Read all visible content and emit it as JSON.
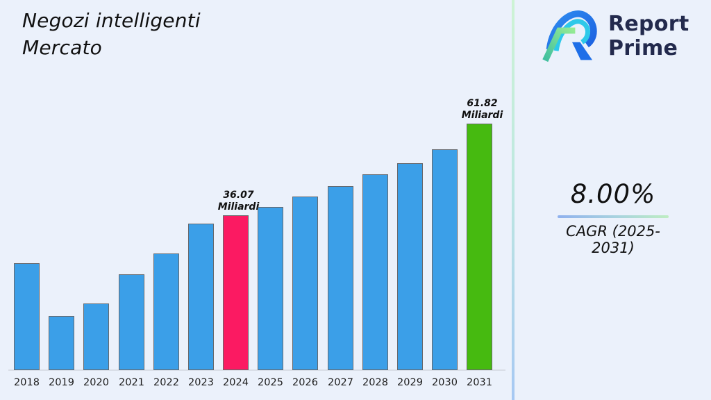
{
  "header": {
    "title_lines": [
      "Negozi intelligenti",
      "Mercato"
    ]
  },
  "brand": {
    "lines": [
      "Report",
      "Prime"
    ],
    "icon": "report-prime-rp-monogram",
    "colors": {
      "navy_text": "#232A4D",
      "blue": "#1E7CF2",
      "cyan": "#2EC9E9",
      "green_light": "#8FE896",
      "green_teal": "#3FBF9F"
    }
  },
  "stats": {
    "cagr_value": "8.00%",
    "cagr_label": "CAGR (2025-2031)"
  },
  "chart_data": {
    "type": "bar",
    "title": "Negozi intelligenti Mercato",
    "xlabel": "",
    "ylabel": "",
    "unit": "Miliardi",
    "categories": [
      "2018",
      "2019",
      "2020",
      "2021",
      "2022",
      "2023",
      "2024",
      "2025",
      "2026",
      "2027",
      "2028",
      "2029",
      "2030",
      "2031"
    ],
    "values": [
      22.6,
      7.8,
      11.3,
      19.5,
      25.3,
      33.7,
      36.07,
      38.4,
      41.3,
      44.3,
      47.6,
      50.7,
      54.6,
      61.82
    ],
    "labeled_points": [
      {
        "category": "2024",
        "value_label": "36.07",
        "unit_label": "Miliardi"
      },
      {
        "category": "2031",
        "value_label": "61.82",
        "unit_label": "Miliardi"
      }
    ],
    "colors": {
      "default": "#3B9FE8",
      "highlights": {
        "2024": "#FB1A62",
        "2031": "#46BA10"
      }
    },
    "legend": null,
    "grid": false,
    "y_axis_visible": false,
    "x_axis_visible": true,
    "ylim_hint": [
      -7.4,
      70
    ]
  }
}
